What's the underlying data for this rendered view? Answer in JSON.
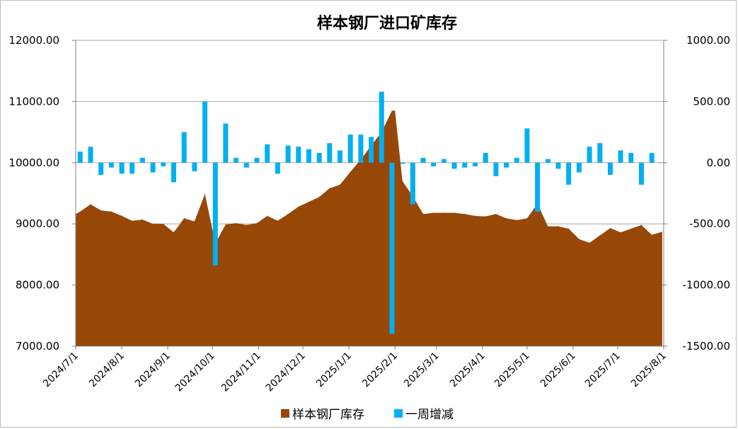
{
  "chart_data": {
    "type": "area+bar",
    "title": "样本钢厂进口矿库存",
    "colors": {
      "area": "#974706",
      "bar": "#00B0F0",
      "grid": "#A6A6A6"
    },
    "y_left": {
      "lim": [
        7000,
        12000
      ],
      "ticks": [
        "7000.00",
        "8000.00",
        "9000.00",
        "10000.00",
        "11000.00",
        "12000.00"
      ]
    },
    "y_right": {
      "lim": [
        -1500,
        1000
      ],
      "ticks": [
        "-1500.00",
        "-1000.00",
        "-500.00",
        "0.00",
        "500.00",
        "1000.00"
      ]
    },
    "x_ticks": [
      "2024/7/1",
      "2024/8/1",
      "2024/9/1",
      "2024/10/1",
      "2024/11/1",
      "2024/12/1",
      "2025/1/1",
      "2025/2/1",
      "2025/3/1",
      "2025/4/1",
      "2025/5/1",
      "2025/6/1",
      "2025/7/1",
      "2025/8/1"
    ],
    "x_range": [
      "2024-07-01",
      "2025-08-01"
    ],
    "grid": true,
    "legend_position": "bottom",
    "series": [
      {
        "name": "样本钢厂库存",
        "type": "area",
        "axis": "left",
        "x": [
          "2024-07-01",
          "2024-07-04",
          "2024-07-11",
          "2024-07-18",
          "2024-07-25",
          "2024-08-01",
          "2024-08-08",
          "2024-08-15",
          "2024-08-22",
          "2024-08-29",
          "2024-09-05",
          "2024-09-12",
          "2024-09-19",
          "2024-09-26",
          "2024-10-03",
          "2024-10-10",
          "2024-10-17",
          "2024-10-24",
          "2024-10-31",
          "2024-11-07",
          "2024-11-14",
          "2024-11-21",
          "2024-11-28",
          "2024-12-05",
          "2024-12-12",
          "2024-12-19",
          "2024-12-26",
          "2025-01-02",
          "2025-01-09",
          "2025-01-16",
          "2025-01-23",
          "2025-01-30",
          "2025-02-01",
          "2025-02-06",
          "2025-02-13",
          "2025-02-20",
          "2025-02-27",
          "2025-03-06",
          "2025-03-13",
          "2025-03-20",
          "2025-03-27",
          "2025-04-03",
          "2025-04-10",
          "2025-04-17",
          "2025-04-24",
          "2025-05-01",
          "2025-05-08",
          "2025-05-15",
          "2025-05-22",
          "2025-05-29",
          "2025-06-05",
          "2025-06-12",
          "2025-06-19",
          "2025-06-26",
          "2025-07-03",
          "2025-07-10",
          "2025-07-17",
          "2025-07-24",
          "2025-07-31"
        ],
        "values": [
          9160,
          9200,
          9320,
          9220,
          9200,
          9130,
          9050,
          9070,
          9000,
          9000,
          8860,
          9090,
          9040,
          9490,
          8680,
          8990,
          9010,
          8980,
          9010,
          9130,
          9050,
          9160,
          9280,
          9360,
          9440,
          9580,
          9640,
          9850,
          10050,
          10280,
          10500,
          10850,
          10850,
          9700,
          9450,
          9160,
          9180,
          9180,
          9180,
          9160,
          9130,
          9120,
          9160,
          9090,
          9060,
          9090,
          9330,
          8960,
          8960,
          8920,
          8750,
          8690,
          8810,
          8930,
          8860,
          8920,
          8980,
          8820,
          8870
        ]
      },
      {
        "name": "一周增减",
        "type": "bar",
        "axis": "right",
        "x": [
          "2024-07-04",
          "2024-07-11",
          "2024-07-18",
          "2024-07-25",
          "2024-08-01",
          "2024-08-08",
          "2024-08-15",
          "2024-08-22",
          "2024-08-29",
          "2024-09-05",
          "2024-09-12",
          "2024-09-19",
          "2024-09-26",
          "2024-10-03",
          "2024-10-10",
          "2024-10-17",
          "2024-10-24",
          "2024-10-31",
          "2024-11-07",
          "2024-11-14",
          "2024-11-21",
          "2024-11-28",
          "2024-12-05",
          "2024-12-12",
          "2024-12-19",
          "2024-12-26",
          "2025-01-02",
          "2025-01-09",
          "2025-01-16",
          "2025-01-23",
          "2025-01-30",
          "2025-02-06",
          "2025-02-13",
          "2025-02-20",
          "2025-02-27",
          "2025-03-06",
          "2025-03-13",
          "2025-03-20",
          "2025-03-27",
          "2025-04-03",
          "2025-04-10",
          "2025-04-17",
          "2025-04-24",
          "2025-05-01",
          "2025-05-08",
          "2025-05-15",
          "2025-05-22",
          "2025-05-29",
          "2025-06-05",
          "2025-06-12",
          "2025-06-19",
          "2025-06-26",
          "2025-07-03",
          "2025-07-10",
          "2025-07-17",
          "2025-07-24",
          "2025-07-31"
        ],
        "values": [
          90,
          130,
          -100,
          -40,
          -90,
          -90,
          40,
          -80,
          -30,
          -160,
          250,
          -70,
          500,
          -840,
          320,
          40,
          -40,
          40,
          150,
          -90,
          140,
          130,
          110,
          80,
          160,
          100,
          230,
          230,
          210,
          580,
          -1400,
          -10,
          -340,
          40,
          -30,
          30,
          -50,
          -40,
          -30,
          80,
          -110,
          -40,
          40,
          280,
          -400,
          30,
          -50,
          -180,
          -80,
          130,
          160,
          -100,
          100,
          80,
          -180,
          80,
          0
        ]
      }
    ]
  }
}
